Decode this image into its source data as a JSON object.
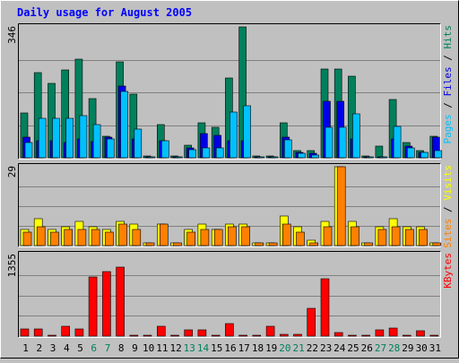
{
  "chart_data": {
    "type": "bar",
    "title": "Daily usage for August 2005",
    "colors": {
      "hits": "#00805c",
      "files": "#0000e6",
      "pages": "#00c0ff",
      "visits": "#ffff00",
      "sites": "#ff8000",
      "kbytes": "#ff0000",
      "title": "#0000ff",
      "weekend_day": "#00805c",
      "weekday_day": "#000000"
    },
    "categories": [
      "1",
      "2",
      "3",
      "4",
      "5",
      "6",
      "7",
      "8",
      "9",
      "10",
      "11",
      "12",
      "13",
      "14",
      "15",
      "16",
      "17",
      "18",
      "19",
      "20",
      "21",
      "22",
      "23",
      "24",
      "25",
      "26",
      "27",
      "28",
      "29",
      "30",
      "31"
    ],
    "weekend_days": [
      "6",
      "7",
      "13",
      "14",
      "20",
      "21",
      "27",
      "28"
    ],
    "panels": [
      {
        "id": "hits",
        "ylabel_parts": [
          {
            "text": "Pages",
            "color": "#00c0ff"
          },
          {
            "text": " / ",
            "color": "#000000"
          },
          {
            "text": "Files",
            "color": "#0000e6"
          },
          {
            "text": " / ",
            "color": "#000000"
          },
          {
            "text": "Hits",
            "color": "#00805c"
          }
        ],
        "ymax_label": "346",
        "ymax": 346,
        "series": [
          {
            "name": "Hits",
            "color": "#00805c",
            "values": [
              118,
              224,
              196,
              233,
              261,
              157,
              58,
              253,
              169,
              5,
              88,
              5,
              32,
              92,
              80,
              210,
              346,
              5,
              5,
              92,
              20,
              18,
              235,
              235,
              215,
              5,
              31,
              153,
              40,
              19,
              57
            ]
          },
          {
            "name": "Files",
            "color": "#0000e6",
            "values": [
              55,
              45,
              45,
              40,
              50,
              42,
              55,
              190,
              50,
              3,
              45,
              3,
              25,
              65,
              60,
              45,
              45,
              3,
              3,
              55,
              15,
              12,
              150,
              150,
              50,
              3,
              3,
              50,
              30,
              15,
              55
            ]
          },
          {
            "name": "Pages",
            "color": "#00c0ff",
            "values": [
              40,
              105,
              105,
              105,
              112,
              88,
              50,
              176,
              75,
              3,
              44,
              3,
              22,
              25,
              25,
              122,
              137,
              3,
              3,
              48,
              12,
              8,
              80,
              80,
              115,
              3,
              3,
              84,
              27,
              14,
              18
            ]
          }
        ]
      },
      {
        "id": "visits",
        "ylabel_parts": [
          {
            "text": "Sites",
            "color": "#ff8000"
          },
          {
            "text": " / ",
            "color": "#000000"
          },
          {
            "text": "Visits",
            "color": "#ffff00"
          }
        ],
        "ymax_label": "29",
        "ymax": 29,
        "series": [
          {
            "name": "Visits",
            "color": "#ffff00",
            "values": [
              6,
              10,
              6,
              7,
              9,
              7,
              6,
              9,
              8,
              1,
              8,
              1,
              6,
              8,
              6,
              8,
              8,
              1,
              1,
              11,
              7,
              2,
              9,
              29,
              9,
              1,
              7,
              10,
              7,
              7,
              1
            ]
          },
          {
            "name": "Sites",
            "color": "#ff8000",
            "values": [
              5,
              7,
              5,
              6,
              6,
              6,
              5,
              8,
              6,
              1,
              8,
              1,
              5,
              6,
              6,
              7,
              7,
              1,
              1,
              8,
              5,
              1,
              7,
              29,
              7,
              1,
              6,
              7,
              6,
              6,
              1
            ]
          }
        ]
      },
      {
        "id": "kbytes",
        "ylabel_parts": [
          {
            "text": "KBytes",
            "color": "#ff0000"
          }
        ],
        "ymax_label": "1355",
        "ymax": 1355,
        "series": [
          {
            "name": "KBytes",
            "color": "#ff0000",
            "values": [
              115,
              120,
              15,
              160,
              120,
              980,
              1070,
              1150,
              15,
              15,
              165,
              15,
              100,
              100,
              15,
              215,
              15,
              15,
              160,
              35,
              35,
              460,
              950,
              60,
              15,
              15,
              100,
              140,
              15,
              95,
              15
            ]
          }
        ]
      }
    ]
  }
}
